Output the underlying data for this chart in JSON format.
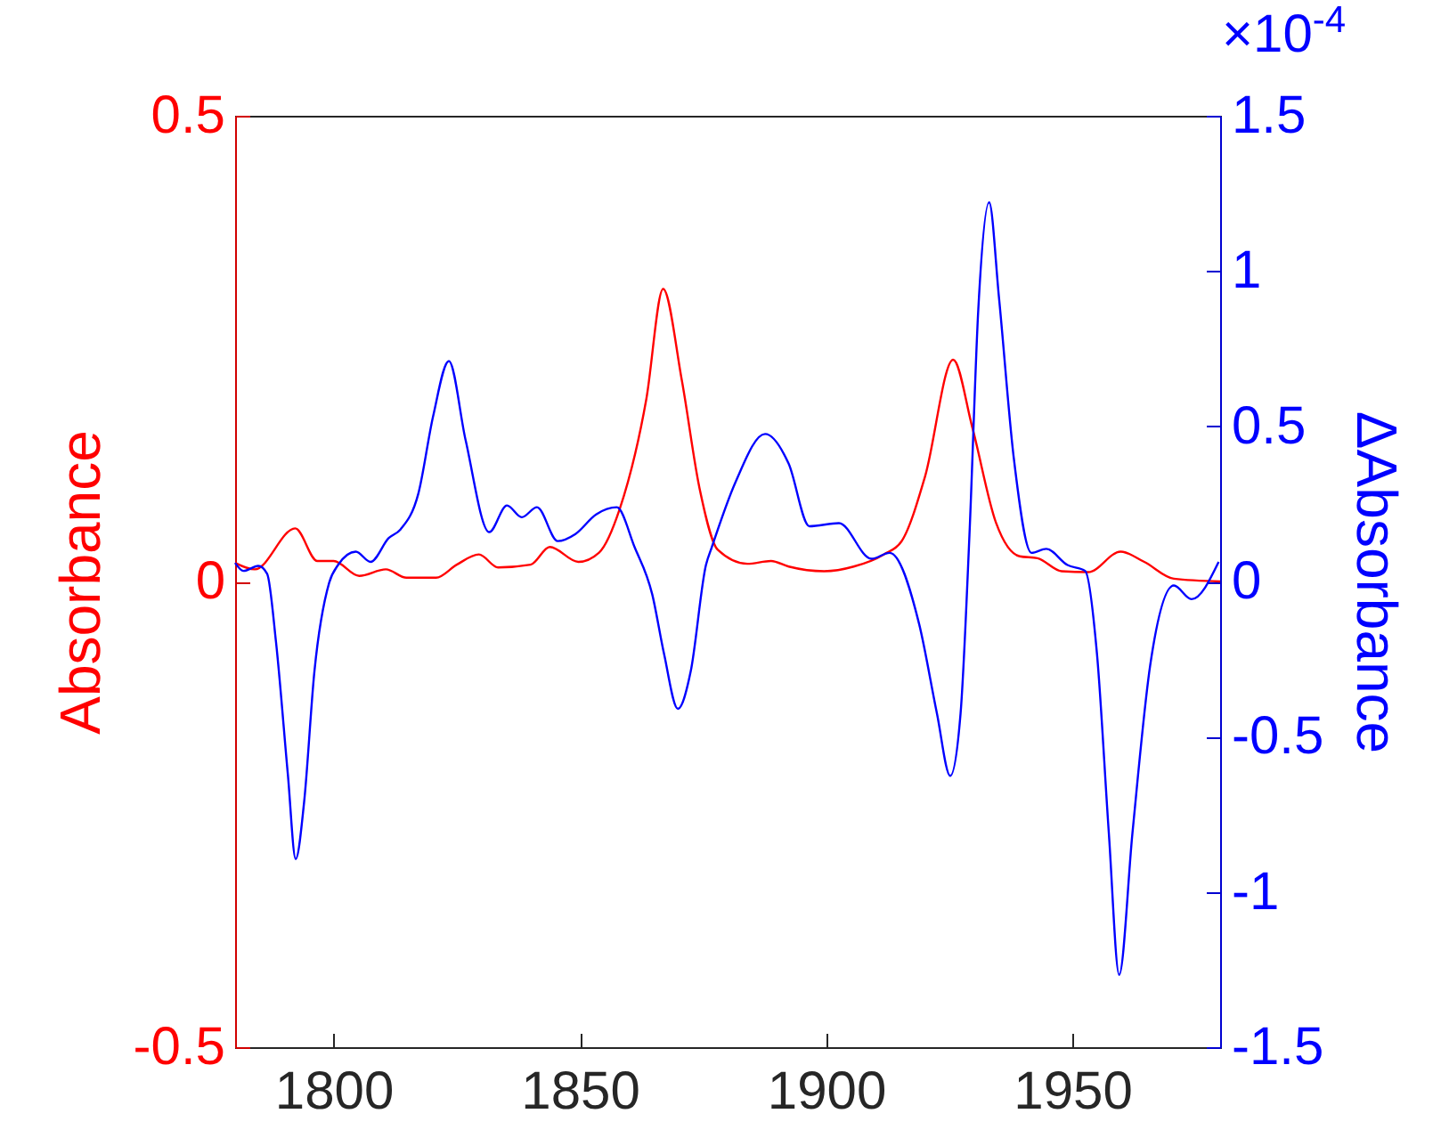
{
  "chart_data": {
    "type": "line",
    "ylabel": "Absorbance",
    "y2label": "ΔAbsorbance",
    "annotations": [
      "×10$^{-4}$"
    ],
    "xlim": [
      1780,
      1980
    ],
    "xticks": [
      1800,
      1850,
      1900,
      1950
    ],
    "ylim": [
      -0.5,
      0.5
    ],
    "yticks": [
      -0.5,
      0,
      0.5
    ],
    "y2lim": [
      -1.5,
      1.5
    ],
    "y2ticks": [
      -1.5,
      -1,
      -0.5,
      0,
      0.5,
      1,
      1.5
    ],
    "series": [
      {
        "color": "#ff0000",
        "x": [
          1780,
          1784,
          1792.2,
          1796.7,
          1800,
          1805.2,
          1810.6,
          1814.8,
          1820.8,
          1825,
          1829.5,
          1833.4,
          1840,
          1843.9,
          1849.7,
          1853.9,
          1858.1,
          1863.5,
          1866.9,
          1870.7,
          1874.3,
          1878,
          1884,
          1888.8,
          1892.4,
          1899.6,
          1905.6,
          1911.7,
          1915.3,
          1920.1,
          1925.8,
          1929.7,
          1934.5,
          1939.3,
          1942.9,
          1947.8,
          1953.2,
          1959.8,
          1964.6,
          1970.6,
          1980
        ],
        "values": [
          0.02,
          0.013,
          0.057,
          0.022,
          0.022,
          0.006,
          0.013,
          0.004,
          0.004,
          0.018,
          0.029,
          0.015,
          0.018,
          0.037,
          0.021,
          0.031,
          0.078,
          0.196,
          0.314,
          0.216,
          0.1,
          0.034,
          0.019,
          0.022,
          0.016,
          0.011,
          0.016,
          0.029,
          0.043,
          0.113,
          0.238,
          0.165,
          0.063,
          0.027,
          0.025,
          0.011,
          0.01,
          0.032,
          0.021,
          0.003,
          0
        ]
      },
      {
        "color": "#0000ff",
        "axis": "y2",
        "x": [
          1780,
          1781.7,
          1784.7,
          1786.5,
          1788.3,
          1790.7,
          1792.3,
          1794,
          1796.1,
          1799.1,
          1800.9,
          1804.5,
          1807.5,
          1811.2,
          1813.6,
          1817.2,
          1820.2,
          1823.4,
          1826.8,
          1831.6,
          1835.2,
          1838.2,
          1841.3,
          1845.5,
          1849.1,
          1853.3,
          1857.5,
          1861.1,
          1864.7,
          1867.1,
          1869.9,
          1872.5,
          1875.6,
          1876.8,
          1881.6,
          1887.6,
          1892.4,
          1896.6,
          1902.6,
          1909.2,
          1912.9,
          1918.9,
          1922.5,
          1925.2,
          1927.3,
          1929.1,
          1930.9,
          1933.1,
          1935.1,
          1938.1,
          1941.7,
          1944.7,
          1949,
          1952.6,
          1955,
          1957.4,
          1959.5,
          1962.2,
          1965.8,
          1970.6,
          1974.2,
          1979.7
        ],
        "values": [
          0.06,
          0.034,
          0.05,
          0.025,
          -0.195,
          -0.62,
          -0.894,
          -0.712,
          -0.29,
          -0.004,
          0.053,
          0.096,
          0.063,
          0.14,
          0.168,
          0.283,
          0.532,
          0.71,
          0.455,
          0.159,
          0.245,
          0.207,
          0.239,
          0.13,
          0.153,
          0.216,
          0.239,
          0.111,
          -0.042,
          -0.234,
          -0.41,
          -0.29,
          0.053,
          0.111,
          0.32,
          0.475,
          0.379,
          0.178,
          0.188,
          0.073,
          0.092,
          -0.138,
          -0.425,
          -0.626,
          -0.425,
          0.149,
          0.877,
          1.221,
          0.914,
          0.398,
          0.092,
          0.105,
          0.053,
          0.034,
          -0.234,
          -0.81,
          -1.267,
          -0.81,
          -0.27,
          -0.013,
          -0.057,
          0.063
        ]
      }
    ]
  }
}
